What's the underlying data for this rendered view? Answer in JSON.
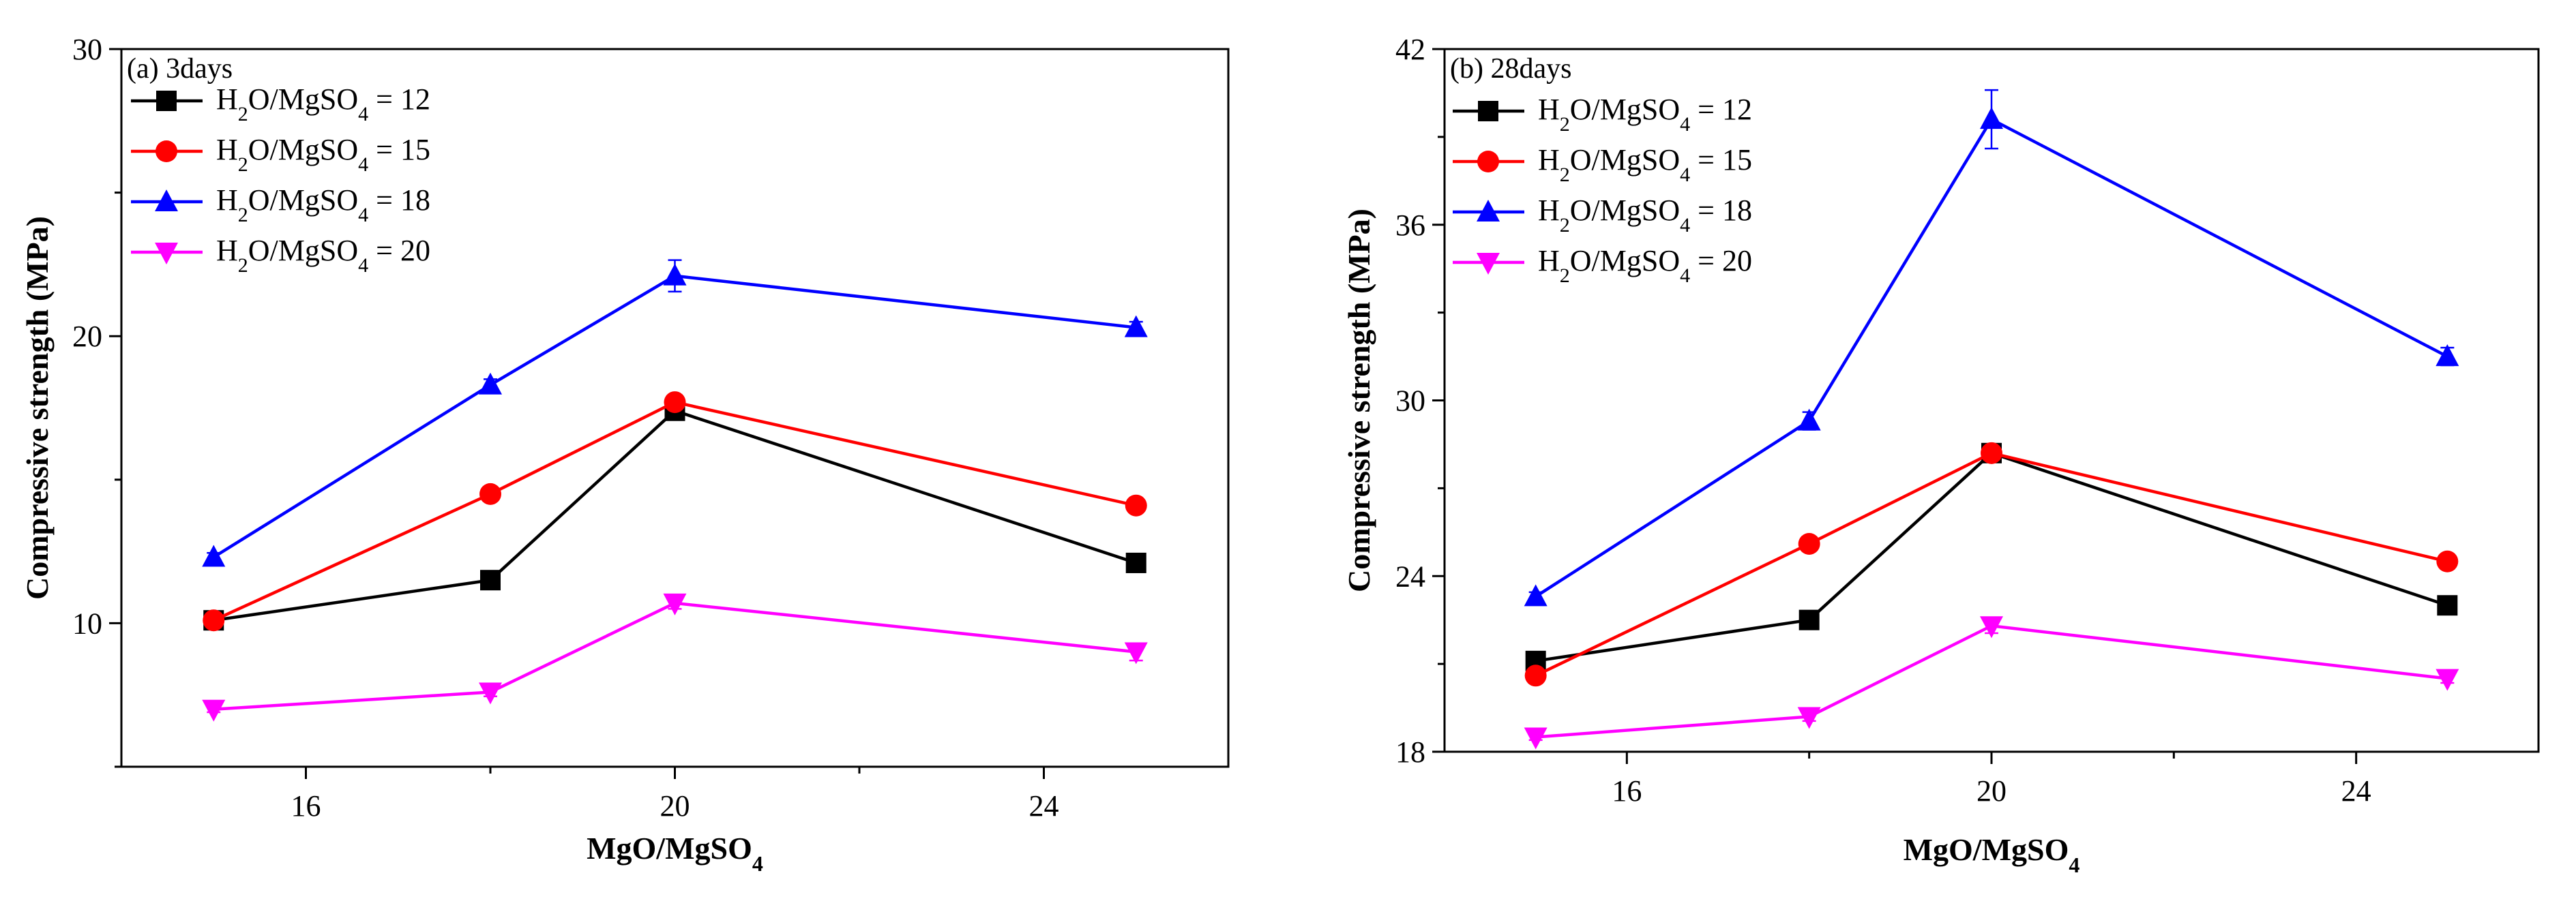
{
  "chart_data": [
    {
      "type": "line",
      "panel_label": "(a) 3days",
      "xlabel": "MgO/MgSO",
      "xlabel_sub": "4",
      "ylabel": "Compressive strength (MPa)",
      "x_ticks": [
        16,
        20,
        24
      ],
      "x_ticks_minor": [
        18,
        22
      ],
      "xlim": [
        14,
        26
      ],
      "y_ticks": [
        10,
        20,
        30
      ],
      "y_ticks_minor": [
        5,
        15,
        25
      ],
      "ylim": [
        5,
        30
      ],
      "x": [
        15,
        18,
        20,
        25
      ],
      "series": [
        {
          "name": "H2O/MgSO4 = 12",
          "label_pre": "H",
          "label_sub1": "2",
          "label_mid": "O/MgSO",
          "label_sub2": "4",
          "label_post": " = 12",
          "color": "#000000",
          "marker": "square",
          "values": [
            10.1,
            11.5,
            17.4,
            12.1
          ],
          "errors": [
            0.1,
            0.15,
            0.2,
            0.3
          ]
        },
        {
          "name": "H2O/MgSO4 = 15",
          "label_pre": "H",
          "label_sub1": "2",
          "label_mid": "O/MgSO",
          "label_sub2": "4",
          "label_post": " = 15",
          "color": "#ff0000",
          "marker": "circle",
          "values": [
            10.1,
            14.5,
            17.7,
            14.1
          ],
          "errors": [
            0.1,
            0.15,
            0.2,
            0.15
          ]
        },
        {
          "name": "H2O/MgSO4 = 18",
          "label_pre": "H",
          "label_sub1": "2",
          "label_mid": "O/MgSO",
          "label_sub2": "4",
          "label_post": " = 18",
          "color": "#0000ff",
          "marker": "triangle-up",
          "values": [
            12.3,
            18.3,
            22.1,
            20.3
          ],
          "errors": [
            0.15,
            0.2,
            0.55,
            0.2
          ]
        },
        {
          "name": "H2O/MgSO4 = 20",
          "label_pre": "H",
          "label_sub1": "2",
          "label_mid": "O/MgSO",
          "label_sub2": "4",
          "label_post": " = 20",
          "color": "#ff00ff",
          "marker": "triangle-down",
          "values": [
            7.0,
            7.6,
            10.7,
            9.0
          ],
          "errors": [
            0.1,
            0.15,
            0.2,
            0.3
          ]
        }
      ]
    },
    {
      "type": "line",
      "panel_label": "(b) 28days",
      "xlabel": "MgO/MgSO",
      "xlabel_sub": "4",
      "ylabel": "Compressive strength (MPa)",
      "x_ticks": [
        16,
        20,
        24
      ],
      "x_ticks_minor": [
        18,
        22
      ],
      "xlim": [
        14,
        26
      ],
      "y_ticks": [
        18,
        24,
        30,
        36,
        42
      ],
      "y_ticks_minor": [
        21,
        27,
        33,
        39
      ],
      "ylim": [
        18,
        42
      ],
      "x": [
        15,
        18,
        20,
        25
      ],
      "series": [
        {
          "name": "H2O/MgSO4 = 12",
          "label_pre": "H",
          "label_sub1": "2",
          "label_mid": "O/MgSO",
          "label_sub2": "4",
          "label_post": " = 12",
          "color": "#000000",
          "marker": "square",
          "values": [
            21.1,
            22.5,
            28.2,
            23.0
          ],
          "errors": [
            0.1,
            0.15,
            0.3,
            0.15
          ]
        },
        {
          "name": "H2O/MgSO4 = 15",
          "label_pre": "H",
          "label_sub1": "2",
          "label_mid": "O/MgSO",
          "label_sub2": "4",
          "label_post": " = 15",
          "color": "#ff0000",
          "marker": "circle",
          "values": [
            20.6,
            25.1,
            28.2,
            24.5
          ],
          "errors": [
            0.1,
            0.25,
            0.25,
            0.15
          ]
        },
        {
          "name": "H2O/MgSO4 = 18",
          "label_pre": "H",
          "label_sub1": "2",
          "label_mid": "O/MgSO",
          "label_sub2": "4",
          "label_post": " = 18",
          "color": "#0000ff",
          "marker": "triangle-up",
          "values": [
            23.3,
            29.3,
            39.6,
            31.5
          ],
          "errors": [
            0.15,
            0.3,
            1.0,
            0.3
          ]
        },
        {
          "name": "H2O/MgSO4 = 20",
          "label_pre": "H",
          "label_sub1": "2",
          "label_mid": "O/MgSO",
          "label_sub2": "4",
          "label_post": " = 20",
          "color": "#ff00ff",
          "marker": "triangle-down",
          "values": [
            18.5,
            19.2,
            22.3,
            20.5
          ],
          "errors": [
            0.1,
            0.15,
            0.25,
            0.15
          ]
        }
      ]
    }
  ]
}
